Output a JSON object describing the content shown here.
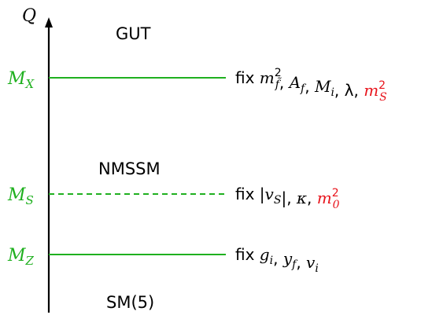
{
  "axis": {
    "label": "Q"
  },
  "regions": {
    "gut": "GUT",
    "nmssm": "NMSSM",
    "sm": "SM(5)"
  },
  "scales": [
    {
      "id": "mx",
      "label": "M",
      "label_sub": "X",
      "line_style": "solid",
      "conditions": [
        {
          "text": "fix ",
          "style": "normal"
        },
        {
          "text": "m",
          "style": "italic",
          "sup": "2",
          "sub": "f̃"
        },
        {
          "text": ", ",
          "style": "normal"
        },
        {
          "text": "A",
          "style": "italic",
          "sub": "f"
        },
        {
          "text": ", ",
          "style": "normal"
        },
        {
          "text": "M",
          "style": "italic",
          "sub": "i"
        },
        {
          "text": ", ",
          "style": "normal"
        },
        {
          "text": "λ",
          "style": "normal"
        },
        {
          "text": ", ",
          "style": "normal"
        },
        {
          "text": "m",
          "style": "italic",
          "sup": "2",
          "sub": "S",
          "color": "#e8141c"
        }
      ]
    },
    {
      "id": "ms",
      "label": "M",
      "label_sub": "S",
      "line_style": "dashed",
      "conditions": [
        {
          "text": "fix ",
          "style": "normal"
        },
        {
          "text": "|",
          "style": "normal"
        },
        {
          "text": "v",
          "style": "italic",
          "sub": "S"
        },
        {
          "text": "|, ",
          "style": "normal"
        },
        {
          "text": "κ",
          "style": "italic"
        },
        {
          "text": ", ",
          "style": "normal"
        },
        {
          "text": "m",
          "style": "italic",
          "sup": "2",
          "sub": "0",
          "color": "#e8141c"
        }
      ]
    },
    {
      "id": "mz",
      "label": "M",
      "label_sub": "Z",
      "line_style": "solid",
      "conditions": [
        {
          "text": "fix ",
          "style": "normal"
        },
        {
          "text": "g",
          "style": "italic",
          "sub": "i"
        },
        {
          "text": ", ",
          "style": "normal"
        },
        {
          "text": "y",
          "style": "italic",
          "sub": "f"
        },
        {
          "text": ", ",
          "style": "normal"
        },
        {
          "text": "v",
          "style": "italic",
          "sub": "i"
        }
      ]
    }
  ],
  "colors": {
    "scale": "#1fb01f",
    "highlight": "#e8141c",
    "axis": "#000000"
  }
}
